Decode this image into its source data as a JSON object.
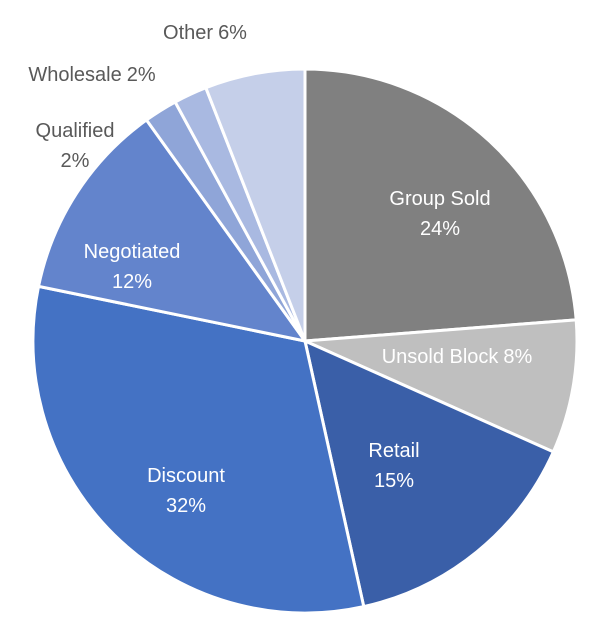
{
  "chart_data": {
    "type": "pie",
    "categories": [
      "Group Sold",
      "Unsold Block",
      "Retail",
      "Discount",
      "Negotiated",
      "Qualified",
      "Wholesale",
      "Other"
    ],
    "values": [
      24,
      8,
      15,
      32,
      12,
      2,
      2,
      6
    ],
    "value_labels": [
      "24%",
      "8%",
      "15%",
      "32%",
      "12%",
      "2%",
      "2%",
      "6%"
    ],
    "colors": [
      "#808080",
      "#bfbfbf",
      "#3a5fa8",
      "#4472c4",
      "#6384cc",
      "#8fa5d8",
      "#a9b9e1",
      "#c5cfe9"
    ]
  }
}
